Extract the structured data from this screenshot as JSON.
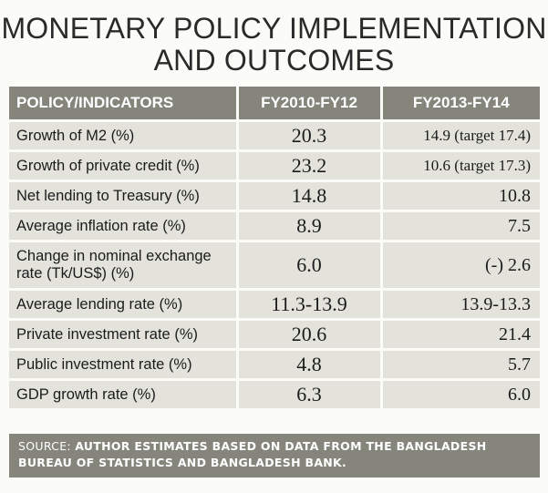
{
  "title": {
    "line1": "MONETARY POLICY IMPLEMENTATION",
    "line2": "AND OUTCOMES"
  },
  "table": {
    "headers": [
      "POLICY/INDICATORS",
      "FY2010-FY12",
      "FY2013-FY14"
    ],
    "rows": [
      {
        "indicator": "Growth of M2 (%)",
        "fy2010_12": "20.3",
        "fy2013_14": "14.9 (target 17.4)"
      },
      {
        "indicator": "Growth of private credit (%)",
        "fy2010_12": "23.2",
        "fy2013_14": "10.6 (target 17.3)"
      },
      {
        "indicator": "Net lending to Treasury (%)",
        "fy2010_12": "14.8",
        "fy2013_14": "10.8"
      },
      {
        "indicator": "Average inflation rate (%)",
        "fy2010_12": "8.9",
        "fy2013_14": "7.5"
      },
      {
        "indicator": "Change in nominal exchange rate (Tk/US$) (%)",
        "fy2010_12": "6.0",
        "fy2013_14": "(-) 2.6"
      },
      {
        "indicator": "Average lending rate (%)",
        "fy2010_12": "11.3-13.9",
        "fy2013_14": "13.9-13.3"
      },
      {
        "indicator": "Private investment rate (%)",
        "fy2010_12": "20.6",
        "fy2013_14": "21.4"
      },
      {
        "indicator": "Public investment rate (%)",
        "fy2010_12": "4.8",
        "fy2013_14": "5.7"
      },
      {
        "indicator": "GDP growth rate (%)",
        "fy2010_12": "6.3",
        "fy2013_14": "6.0"
      }
    ]
  },
  "source": {
    "label": "SOURCE:",
    "text": "AUTHOR ESTIMATES BASED ON DATA FROM THE BANGLADESH BUREAU OF STATISTICS AND BANGLADESH BANK."
  },
  "colors": {
    "header_bg": "#85857c",
    "row_bg": "#e3e3dc",
    "page_bg": "#fbfbf7"
  }
}
